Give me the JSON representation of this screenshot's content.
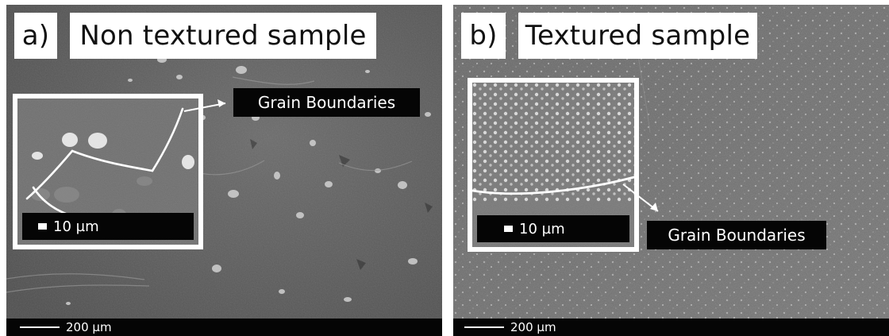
{
  "panels": {
    "a": {
      "letter": "a)",
      "title": "Non textured sample",
      "grain_label": "Grain Boundaries",
      "inset_scale_label": "10 µm",
      "scale_label": "200 µm"
    },
    "b": {
      "letter": "b)",
      "title": "Textured sample",
      "grain_label": "Grain Boundaries",
      "inset_scale_label": "10 µm",
      "scale_label": "200 µm"
    }
  },
  "icons": {
    "annotation_arrow": "arrow-right-icon",
    "inset_scale_marker": "scale-bar-icon"
  },
  "colors": {
    "annotation_background": "#050505",
    "label_background": "#ffffff",
    "boundary_line": "#ffffff",
    "sem_gray": "#5a5a5a"
  }
}
